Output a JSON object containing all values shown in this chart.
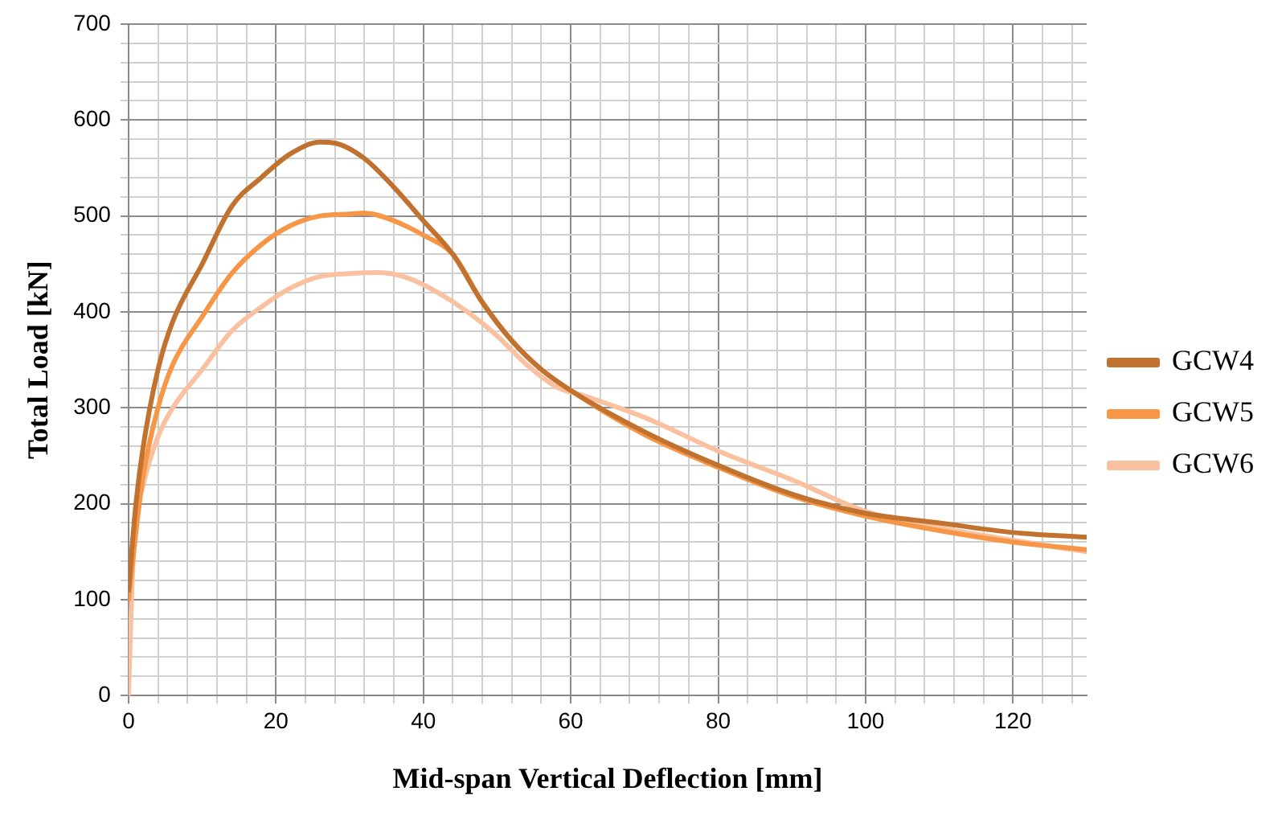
{
  "chart_data": {
    "type": "line",
    "xlabel": "Mid-span Vertical Deflection [mm]",
    "ylabel": "Total Load [kN]",
    "xlim": [
      0,
      130
    ],
    "xticks": [
      0,
      {
        "value": 4,
        "label": null
      },
      {
        "value": 8,
        "label": null
      },
      {
        "value": 12,
        "label": null
      },
      {
        "value": 16,
        "label": null
      },
      20,
      {
        "value": 24,
        "label": null
      },
      {
        "value": 28,
        "label": null
      },
      {
        "value": 32,
        "label": null
      },
      {
        "value": 36,
        "label": null
      },
      40,
      {
        "value": 44,
        "label": null
      },
      {
        "value": 48,
        "label": null
      },
      {
        "value": 52,
        "label": null
      },
      {
        "value": 56,
        "label": null
      },
      60,
      {
        "value": 64,
        "label": null
      },
      {
        "value": 68,
        "label": null
      },
      {
        "value": 72,
        "label": null
      },
      {
        "value": 76,
        "label": null
      },
      80,
      {
        "value": 84,
        "label": null
      },
      {
        "value": 88,
        "label": null
      },
      {
        "value": 92,
        "label": null
      },
      {
        "value": 96,
        "label": null
      },
      100,
      {
        "value": 104,
        "label": null
      },
      {
        "value": 108,
        "label": null
      },
      {
        "value": 112,
        "label": null
      },
      {
        "value": 116,
        "label": null
      },
      120,
      {
        "value": 124,
        "label": null
      },
      {
        "value": 128,
        "label": null
      }
    ],
    "ylim": [
      0,
      700
    ],
    "yticks": [
      0,
      {
        "value": 20,
        "label": null
      },
      {
        "value": 40,
        "label": null
      },
      {
        "value": 60,
        "label": null
      },
      {
        "value": 80,
        "label": null
      },
      100,
      {
        "value": 120,
        "label": null
      },
      {
        "value": 140,
        "label": null
      },
      {
        "value": 160,
        "label": null
      },
      {
        "value": 180,
        "label": null
      },
      200,
      {
        "value": 220,
        "label": null
      },
      {
        "value": 240,
        "label": null
      },
      {
        "value": 260,
        "label": null
      },
      {
        "value": 280,
        "label": null
      },
      300,
      {
        "value": 320,
        "label": null
      },
      {
        "value": 340,
        "label": null
      },
      {
        "value": 360,
        "label": null
      },
      {
        "value": 380,
        "label": null
      },
      400,
      {
        "value": 420,
        "label": null
      },
      {
        "value": 440,
        "label": null
      },
      {
        "value": 460,
        "label": null
      },
      {
        "value": 480,
        "label": null
      },
      500,
      {
        "value": 520,
        "label": null
      },
      {
        "value": 540,
        "label": null
      },
      {
        "value": 560,
        "label": null
      },
      {
        "value": 580,
        "label": null
      },
      600,
      {
        "value": 620,
        "label": null
      },
      {
        "value": 640,
        "label": null
      },
      {
        "value": 660,
        "label": null
      },
      {
        "value": 680,
        "label": null
      },
      700
    ],
    "grid": true,
    "legend": "right",
    "marker": "none",
    "line_style": "solid",
    "series": [
      {
        "name": "GCW4",
        "color": "#c0722e",
        "x": [
          0,
          1,
          2,
          4,
          6,
          10,
          14,
          18,
          22,
          26,
          28,
          32,
          36,
          40,
          44,
          48,
          52,
          56,
          60,
          70,
          80,
          90,
          100,
          110,
          120,
          130
        ],
        "values": [
          110,
          200,
          260,
          340,
          390,
          450,
          510,
          540,
          565,
          577,
          576,
          560,
          530,
          495,
          460,
          410,
          370,
          340,
          318,
          275,
          240,
          210,
          190,
          180,
          170,
          165
        ]
      },
      {
        "name": "GCW5",
        "color": "#f79646",
        "x": [
          0,
          1,
          2,
          4,
          6,
          10,
          14,
          18,
          22,
          26,
          30,
          32,
          36,
          40,
          44,
          48,
          52,
          56,
          60,
          70,
          80,
          90,
          100,
          110,
          120,
          130
        ],
        "values": [
          100,
          170,
          230,
          300,
          345,
          395,
          440,
          470,
          490,
          500,
          502,
          503,
          495,
          480,
          460,
          410,
          370,
          340,
          318,
          272,
          238,
          208,
          187,
          172,
          160,
          152
        ]
      },
      {
        "name": "GCW6",
        "color": "#f9c1a0",
        "x": [
          0,
          0.5,
          1,
          2,
          4,
          6,
          10,
          14,
          18,
          22,
          26,
          30,
          34,
          38,
          42,
          46,
          50,
          54,
          58,
          62,
          70,
          80,
          90,
          100,
          110,
          120,
          130
        ],
        "values": [
          0,
          120,
          180,
          220,
          270,
          300,
          340,
          380,
          405,
          425,
          437,
          440,
          441,
          435,
          420,
          400,
          375,
          345,
          322,
          312,
          290,
          255,
          225,
          192,
          175,
          162,
          150
        ]
      }
    ]
  }
}
